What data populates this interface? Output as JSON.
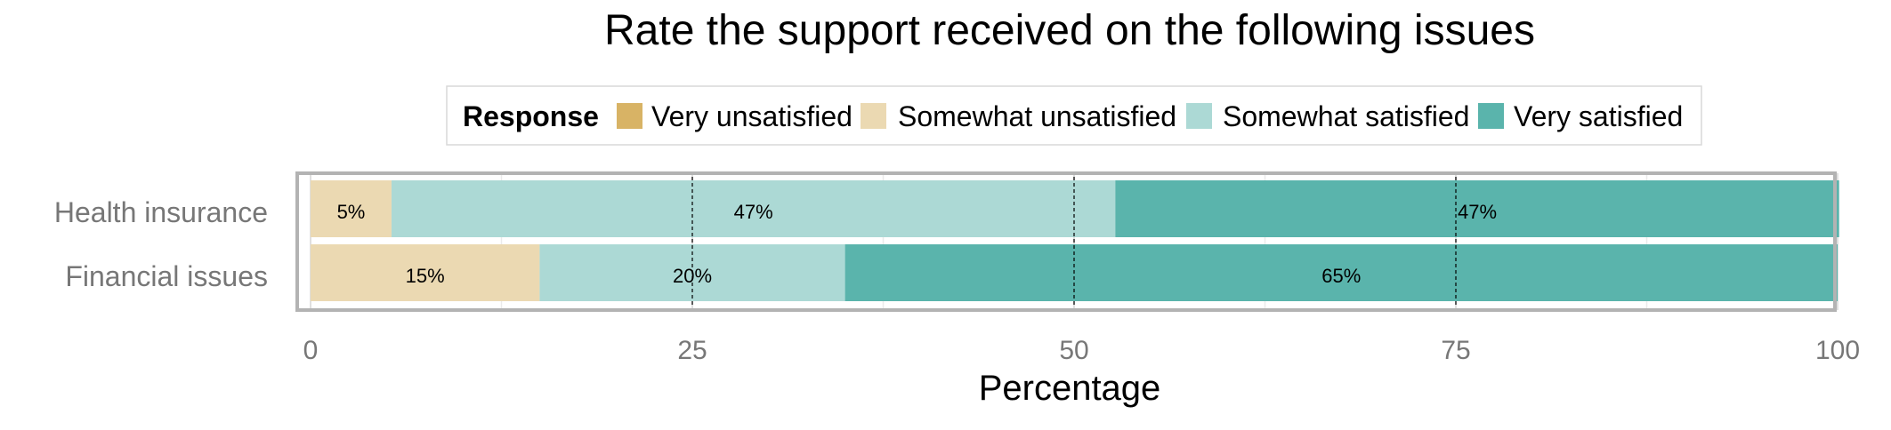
{
  "chart_data": {
    "type": "bar",
    "orientation": "horizontal",
    "stacked": true,
    "title": "Rate the support received on the following issues",
    "xlabel": "Percentage",
    "ylabel": "",
    "xlim": [
      0,
      100
    ],
    "x_ticks": [
      0,
      25,
      50,
      75,
      100
    ],
    "grid": true,
    "legend": {
      "title": "Response",
      "position": "top",
      "entries": [
        "Very unsatisfied",
        "Somewhat unsatisfied",
        "Somewhat satisfied",
        "Very satisfied"
      ]
    },
    "categories": [
      "Health insurance",
      "Financial issues"
    ],
    "series": [
      {
        "name": "Very unsatisfied",
        "color": "#D8B365",
        "values": [
          0,
          0
        ],
        "labels": [
          "",
          ""
        ]
      },
      {
        "name": "Somewhat unsatisfied",
        "color": "#EBD9B2",
        "values": [
          5.3,
          15
        ],
        "labels": [
          "5%",
          "15%"
        ]
      },
      {
        "name": "Somewhat satisfied",
        "color": "#ACD9D5",
        "values": [
          47.4,
          20
        ],
        "labels": [
          "47%",
          "20%"
        ]
      },
      {
        "name": "Very satisfied",
        "color": "#5AB4AC",
        "values": [
          47.4,
          65
        ],
        "labels": [
          "47%",
          "65%"
        ]
      }
    ]
  }
}
